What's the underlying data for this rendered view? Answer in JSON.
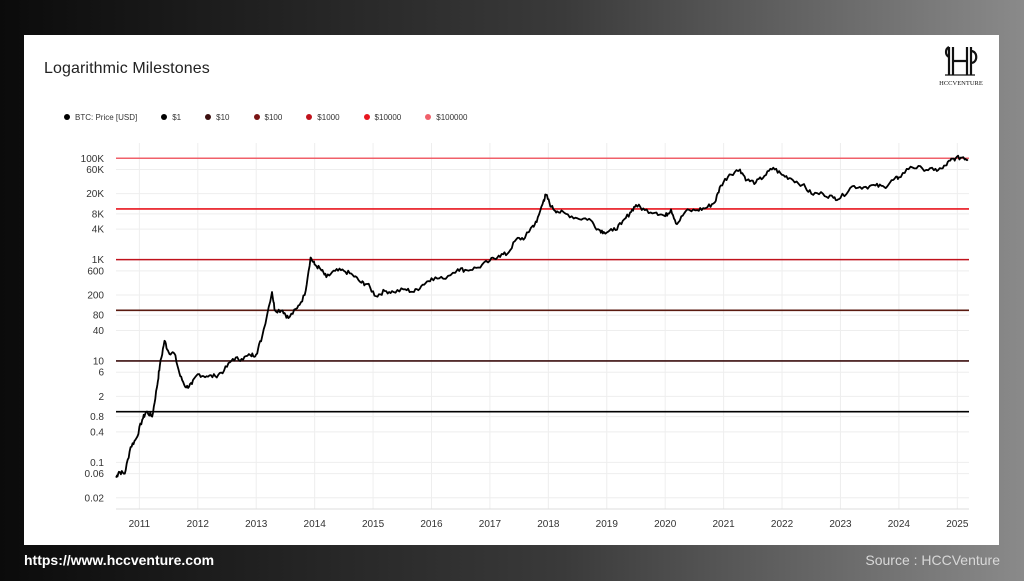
{
  "footer": {
    "url": "https://www.hccventure.com",
    "source": "Source : HCCVenture"
  },
  "logo": {
    "text": "HCCVENTURE"
  },
  "chart_data": {
    "type": "line",
    "title": "Logarithmic Milestones",
    "y_scale": "log",
    "xlabel": "",
    "ylabel": "",
    "grid": true,
    "legend_placement": "top-left",
    "xlim": [
      2010.6,
      2025.2
    ],
    "ylim": [
      0.012,
      200000
    ],
    "x_ticks": [
      "2011",
      "2012",
      "2013",
      "2014",
      "2015",
      "2016",
      "2017",
      "2018",
      "2019",
      "2020",
      "2021",
      "2022",
      "2023",
      "2024",
      "2025"
    ],
    "y_ticks": [
      {
        "value": 0.02,
        "label": "0.02"
      },
      {
        "value": 0.06,
        "label": "0.06"
      },
      {
        "value": 0.1,
        "label": "0.1"
      },
      {
        "value": 0.4,
        "label": "0.4"
      },
      {
        "value": 0.8,
        "label": "0.8"
      },
      {
        "value": 2,
        "label": "2"
      },
      {
        "value": 6,
        "label": "6"
      },
      {
        "value": 10,
        "label": "10"
      },
      {
        "value": 40,
        "label": "40"
      },
      {
        "value": 80,
        "label": "80"
      },
      {
        "value": 200,
        "label": "200"
      },
      {
        "value": 600,
        "label": "600"
      },
      {
        "value": 1000,
        "label": "1K"
      },
      {
        "value": 4000,
        "label": "4K"
      },
      {
        "value": 8000,
        "label": "8K"
      },
      {
        "value": 20000,
        "label": "20K"
      },
      {
        "value": 60000,
        "label": "60K"
      },
      {
        "value": 100000,
        "label": "100K"
      }
    ],
    "legend": [
      {
        "label": "BTC: Price [USD]",
        "color": "#000000"
      },
      {
        "label": "$1",
        "color": "#000000"
      },
      {
        "label": "$10",
        "color": "#3b0f0f"
      },
      {
        "label": "$100",
        "color": "#7a1414"
      },
      {
        "label": "$1000",
        "color": "#c0121c"
      },
      {
        "label": "$10000",
        "color": "#e8161f"
      },
      {
        "label": "$100000",
        "color": "#f0606a"
      }
    ],
    "milestones": [
      {
        "value": 1,
        "color": "#000000"
      },
      {
        "value": 10,
        "color": "#3b0f0f"
      },
      {
        "value": 100,
        "color": "#5a1a10"
      },
      {
        "value": 1000,
        "color": "#c0121c"
      },
      {
        "value": 10000,
        "color": "#e8161f"
      },
      {
        "value": 100000,
        "color": "#f0606a"
      }
    ],
    "series": [
      {
        "name": "BTC: Price [USD]",
        "color": "#000000",
        "points": [
          [
            2010.6,
            0.05
          ],
          [
            2010.65,
            0.065
          ],
          [
            2010.75,
            0.06
          ],
          [
            2010.85,
            0.2
          ],
          [
            2010.95,
            0.3
          ],
          [
            2011.05,
            0.7
          ],
          [
            2011.12,
            1.0
          ],
          [
            2011.22,
            0.8
          ],
          [
            2011.3,
            3
          ],
          [
            2011.35,
            8
          ],
          [
            2011.43,
            25
          ],
          [
            2011.5,
            15
          ],
          [
            2011.6,
            14
          ],
          [
            2011.7,
            5
          ],
          [
            2011.8,
            3
          ],
          [
            2011.9,
            3.5
          ],
          [
            2012.0,
            5.5
          ],
          [
            2012.15,
            5
          ],
          [
            2012.3,
            5
          ],
          [
            2012.45,
            6.5
          ],
          [
            2012.6,
            11
          ],
          [
            2012.75,
            11
          ],
          [
            2012.9,
            13
          ],
          [
            2013.0,
            13.5
          ],
          [
            2013.1,
            30
          ],
          [
            2013.27,
            230
          ],
          [
            2013.32,
            100
          ],
          [
            2013.45,
            100
          ],
          [
            2013.55,
            70
          ],
          [
            2013.7,
            110
          ],
          [
            2013.83,
            200
          ],
          [
            2013.93,
            1100
          ],
          [
            2014.0,
            800
          ],
          [
            2014.1,
            650
          ],
          [
            2014.2,
            450
          ],
          [
            2014.35,
            600
          ],
          [
            2014.5,
            600
          ],
          [
            2014.65,
            500
          ],
          [
            2014.8,
            350
          ],
          [
            2014.9,
            330
          ],
          [
            2015.05,
            190
          ],
          [
            2015.2,
            240
          ],
          [
            2015.35,
            230
          ],
          [
            2015.55,
            260
          ],
          [
            2015.7,
            230
          ],
          [
            2015.85,
            320
          ],
          [
            2016.0,
            430
          ],
          [
            2016.2,
            420
          ],
          [
            2016.45,
            650
          ],
          [
            2016.6,
            620
          ],
          [
            2016.8,
            700
          ],
          [
            2017.0,
            950
          ],
          [
            2017.15,
            1200
          ],
          [
            2017.3,
            1300
          ],
          [
            2017.45,
            2500
          ],
          [
            2017.6,
            2700
          ],
          [
            2017.7,
            4200
          ],
          [
            2017.8,
            5500
          ],
          [
            2017.92,
            15000
          ],
          [
            2017.96,
            19000
          ],
          [
            2018.05,
            11000
          ],
          [
            2018.15,
            9000
          ],
          [
            2018.3,
            8000
          ],
          [
            2018.5,
            6500
          ],
          [
            2018.7,
            6400
          ],
          [
            2018.85,
            4000
          ],
          [
            2018.95,
            3500
          ],
          [
            2019.1,
            3700
          ],
          [
            2019.25,
            5000
          ],
          [
            2019.4,
            8500
          ],
          [
            2019.5,
            12000
          ],
          [
            2019.65,
            9500
          ],
          [
            2019.85,
            8500
          ],
          [
            2020.0,
            7200
          ],
          [
            2020.1,
            9800
          ],
          [
            2020.2,
            5000
          ],
          [
            2020.35,
            9000
          ],
          [
            2020.55,
            9500
          ],
          [
            2020.7,
            10500
          ],
          [
            2020.85,
            13500
          ],
          [
            2020.95,
            29000
          ],
          [
            2021.1,
            48000
          ],
          [
            2021.28,
            60000
          ],
          [
            2021.4,
            37000
          ],
          [
            2021.55,
            33000
          ],
          [
            2021.7,
            45000
          ],
          [
            2021.85,
            65000
          ],
          [
            2022.0,
            47000
          ],
          [
            2022.15,
            40000
          ],
          [
            2022.35,
            30000
          ],
          [
            2022.5,
            20000
          ],
          [
            2022.7,
            20000
          ],
          [
            2022.88,
            16500
          ],
          [
            2023.0,
            16500
          ],
          [
            2023.2,
            28000
          ],
          [
            2023.4,
            27000
          ],
          [
            2023.6,
            29000
          ],
          [
            2023.75,
            27000
          ],
          [
            2023.9,
            37000
          ],
          [
            2024.0,
            42000
          ],
          [
            2024.2,
            68000
          ],
          [
            2024.4,
            63000
          ],
          [
            2024.6,
            58000
          ],
          [
            2024.75,
            63000
          ],
          [
            2024.88,
            90000
          ],
          [
            2024.97,
            100000
          ],
          [
            2025.1,
            105000
          ],
          [
            2025.18,
            95000
          ]
        ]
      }
    ]
  }
}
